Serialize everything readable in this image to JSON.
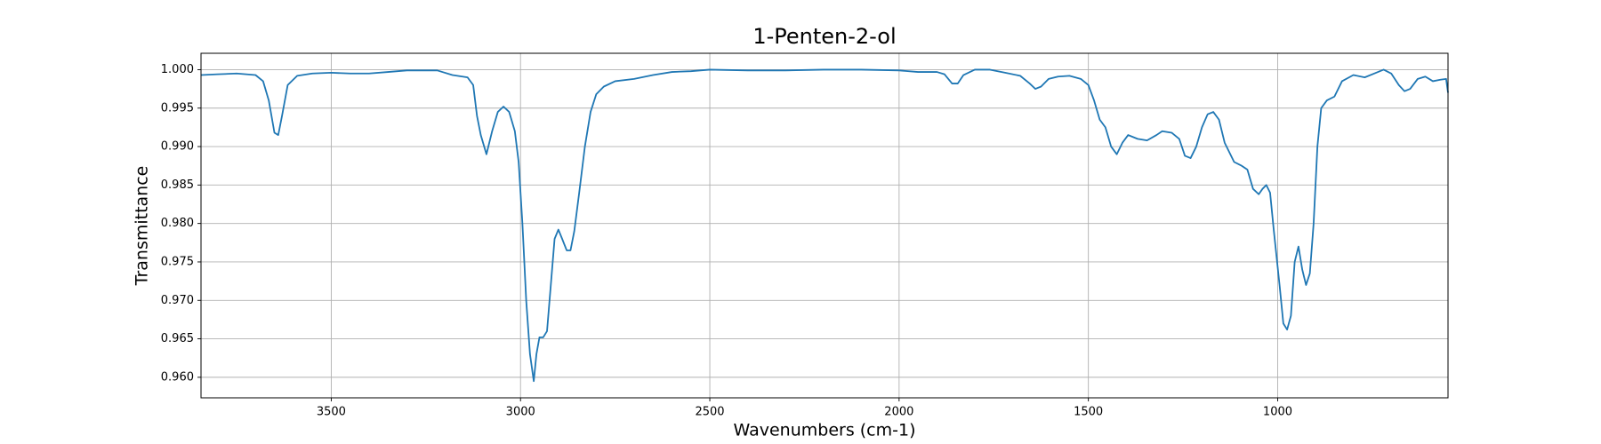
{
  "chart_data": {
    "type": "line",
    "title": "1-Penten-2-ol",
    "x_label": "Wavenumbers (cm-1)",
    "y_label": "Transmittance",
    "color": "#1f77b4",
    "grid": true,
    "xlim": [
      3844,
      550
    ],
    "ylim": [
      0.95733,
      1.00213
    ],
    "xticks": [
      3500,
      3000,
      2500,
      2000,
      1500,
      1000
    ],
    "yticks": [
      {
        "value": 0.96,
        "label": "0.960"
      },
      0.965,
      {
        "value": 0.97,
        "label": "0.970"
      },
      0.975,
      {
        "value": 0.98,
        "label": "0.980"
      },
      0.985,
      {
        "value": 0.99,
        "label": "0.990"
      },
      0.995,
      {
        "value": 1,
        "label": "1.000"
      }
    ],
    "x": [
      3844,
      3800,
      3750,
      3700,
      3680,
      3665,
      3650,
      3640,
      3630,
      3615,
      3590,
      3550,
      3500,
      3450,
      3400,
      3350,
      3300,
      3250,
      3220,
      3180,
      3140,
      3125,
      3115,
      3105,
      3090,
      3075,
      3060,
      3045,
      3030,
      3015,
      3005,
      2995,
      2985,
      2975,
      2965,
      2958,
      2950,
      2940,
      2930,
      2920,
      2910,
      2900,
      2890,
      2878,
      2868,
      2858,
      2845,
      2830,
      2815,
      2800,
      2780,
      2750,
      2700,
      2650,
      2600,
      2550,
      2500,
      2400,
      2300,
      2200,
      2100,
      2000,
      1950,
      1900,
      1880,
      1860,
      1845,
      1830,
      1800,
      1760,
      1720,
      1680,
      1655,
      1640,
      1625,
      1605,
      1580,
      1550,
      1520,
      1500,
      1485,
      1470,
      1455,
      1440,
      1425,
      1410,
      1395,
      1370,
      1345,
      1320,
      1305,
      1280,
      1260,
      1245,
      1230,
      1215,
      1200,
      1185,
      1170,
      1155,
      1140,
      1115,
      1095,
      1080,
      1065,
      1050,
      1040,
      1030,
      1020,
      1010,
      995,
      985,
      975,
      965,
      955,
      945,
      935,
      925,
      915,
      905,
      895,
      885,
      870,
      850,
      830,
      800,
      770,
      740,
      720,
      700,
      680,
      665,
      650,
      630,
      610,
      590,
      570,
      555,
      550
    ],
    "values": [
      0.9993,
      0.9994,
      0.9995,
      0.9993,
      0.9985,
      0.996,
      0.9918,
      0.9915,
      0.994,
      0.998,
      0.9992,
      0.9995,
      0.9996,
      0.9995,
      0.9995,
      0.9997,
      0.9999,
      0.9999,
      0.9999,
      0.9993,
      0.999,
      0.998,
      0.994,
      0.9915,
      0.989,
      0.992,
      0.9945,
      0.9952,
      0.9945,
      0.992,
      0.988,
      0.98,
      0.97,
      0.963,
      0.9595,
      0.963,
      0.9652,
      0.9652,
      0.966,
      0.972,
      0.978,
      0.9792,
      0.978,
      0.9765,
      0.9765,
      0.979,
      0.984,
      0.99,
      0.9945,
      0.9968,
      0.9978,
      0.9985,
      0.9988,
      0.9993,
      0.9997,
      0.9998,
      1,
      0.9999,
      0.9999,
      1,
      1,
      0.9999,
      0.9997,
      0.9997,
      0.9994,
      0.9982,
      0.9982,
      0.9993,
      1,
      1,
      0.9996,
      0.9992,
      0.9982,
      0.9975,
      0.9978,
      0.9988,
      0.9991,
      0.9992,
      0.9988,
      0.998,
      0.996,
      0.9935,
      0.9925,
      0.99,
      0.989,
      0.9905,
      0.9915,
      0.991,
      0.9908,
      0.9915,
      0.992,
      0.9918,
      0.991,
      0.9888,
      0.9885,
      0.99,
      0.9925,
      0.9942,
      0.9945,
      0.9935,
      0.9905,
      0.988,
      0.9875,
      0.987,
      0.9845,
      0.9838,
      0.9845,
      0.985,
      0.984,
      0.979,
      0.972,
      0.967,
      0.9662,
      0.968,
      0.975,
      0.977,
      0.974,
      0.972,
      0.9735,
      0.98,
      0.99,
      0.995,
      0.996,
      0.9965,
      0.9985,
      0.9993,
      0.999,
      0.9996,
      1,
      0.9995,
      0.998,
      0.9972,
      0.9975,
      0.9988,
      0.9991,
      0.9985,
      0.9987,
      0.9988,
      0.997
    ]
  }
}
